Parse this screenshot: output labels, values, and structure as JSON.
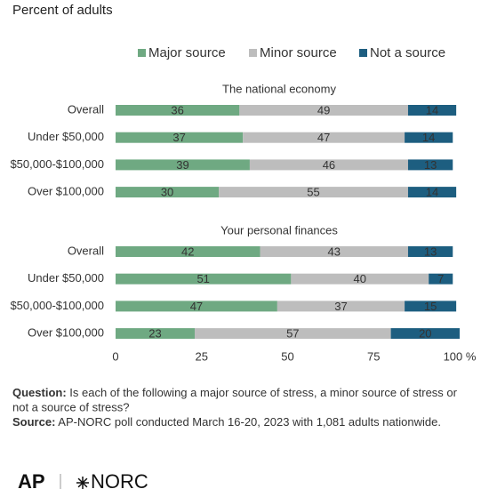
{
  "chart_data": {
    "type": "bar",
    "orientation": "horizontal",
    "stacked": true,
    "subtitle": "Percent of adults",
    "groups": [
      {
        "title": "The national economy",
        "categories": [
          "Overall",
          "Under $50,000",
          "$50,000-$100,000",
          "Over $100,000"
        ]
      },
      {
        "title": "Your personal finances",
        "categories": [
          "Overall",
          "Under $50,000",
          "$50,000-$100,000",
          "Over $100,000"
        ]
      }
    ],
    "series": [
      {
        "name": "Major source",
        "color": "#6fa982",
        "label_color": "#333333",
        "values": [
          [
            36,
            37,
            39,
            30
          ],
          [
            42,
            51,
            47,
            23
          ]
        ]
      },
      {
        "name": "Minor source",
        "color": "#bdbdbd",
        "label_color": "#333333",
        "values": [
          [
            49,
            47,
            46,
            55
          ],
          [
            43,
            40,
            37,
            57
          ]
        ]
      },
      {
        "name": "Not a source",
        "color": "#1d5e80",
        "label_color": "#ffffff",
        "values": [
          [
            14,
            14,
            13,
            14
          ],
          [
            13,
            7,
            15,
            20
          ]
        ]
      }
    ],
    "xlim": [
      0,
      100
    ],
    "xticks": [
      0,
      25,
      50,
      75,
      {
        "value": 100,
        "label": "100 %"
      }
    ],
    "grid": false,
    "legend": "top"
  },
  "footer": [
    {
      "label": "Question:",
      "text": " Is each of the following a major source of stress, a minor source of stress or",
      "more": "not a source of stress?"
    },
    {
      "label": "Source:",
      "text": " AP-NORC poll conducted March 16-20, 2023 with 1,081 adults nationwide."
    }
  ],
  "logos": [
    "AP",
    "NORC"
  ]
}
